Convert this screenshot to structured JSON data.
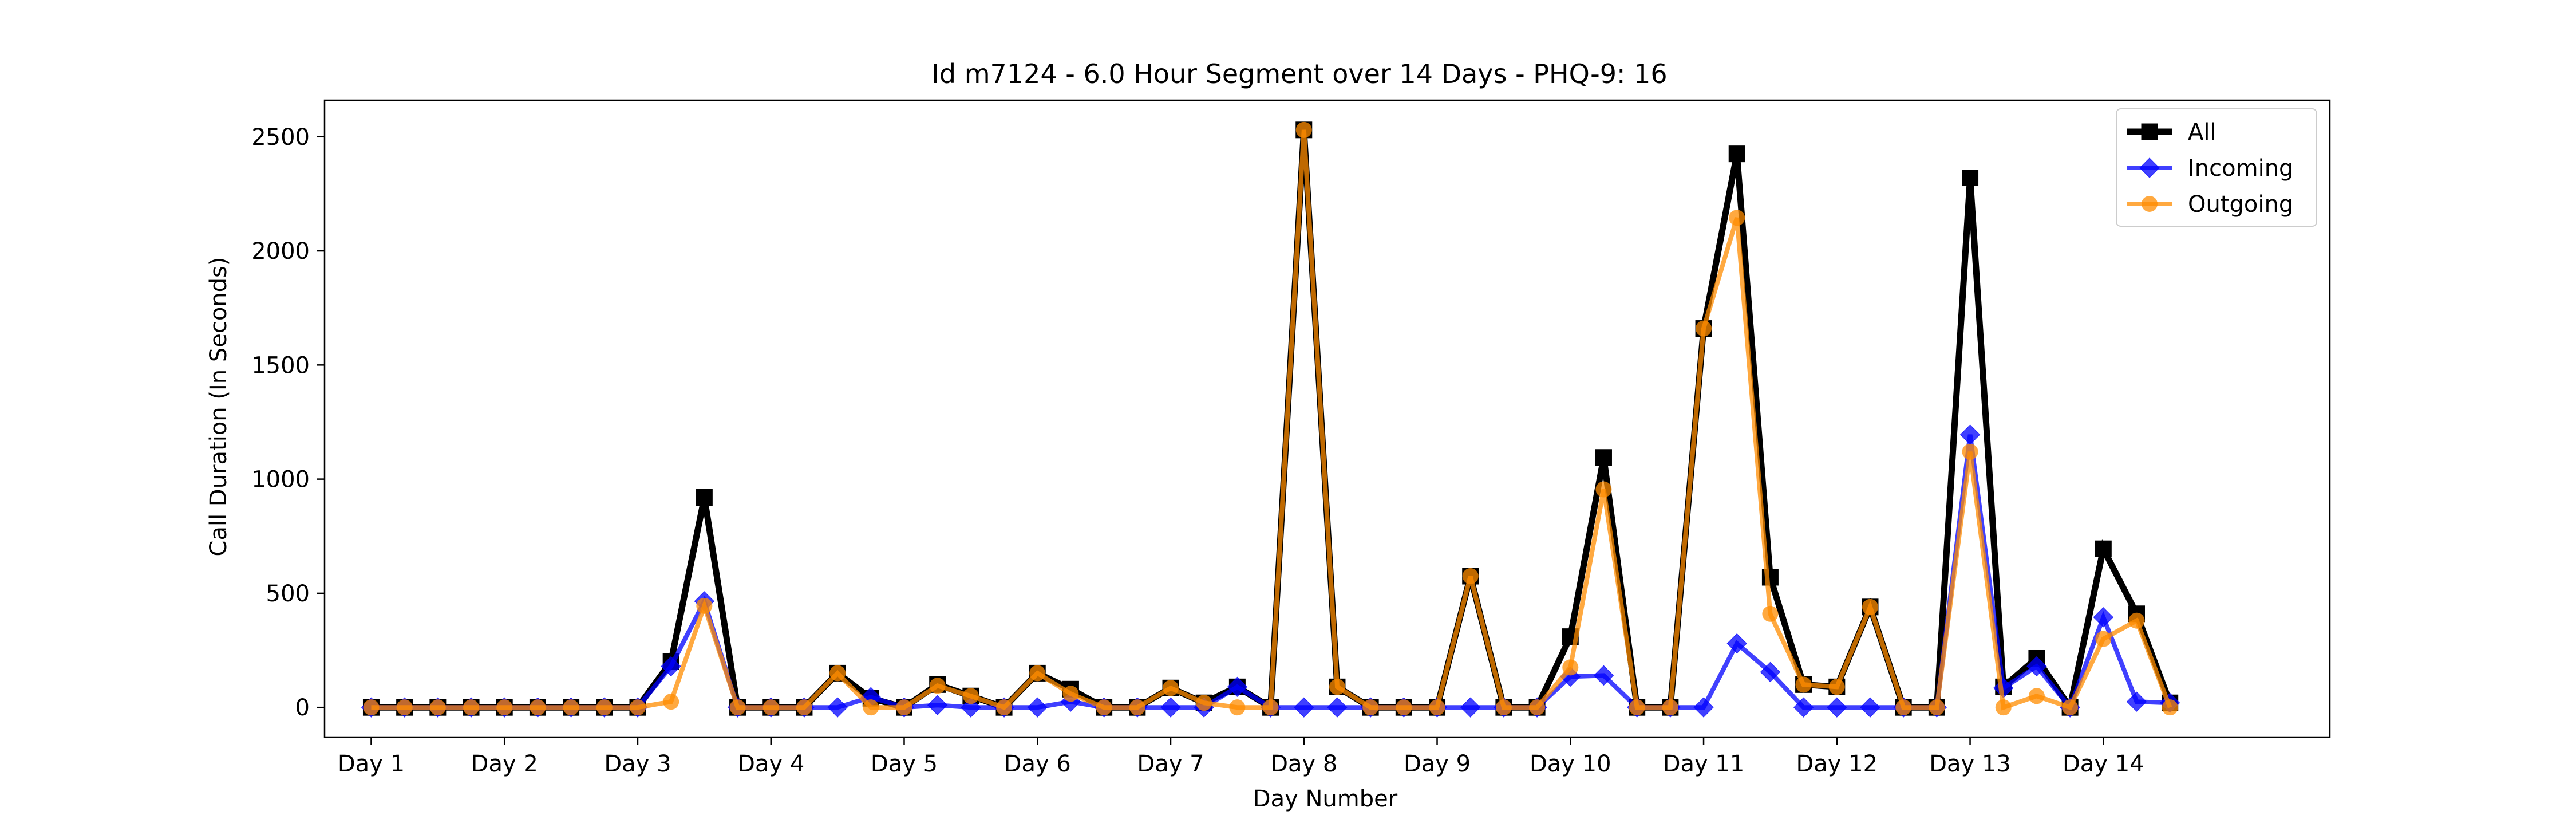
{
  "chart_data": {
    "type": "line",
    "title": "Id m7124 - 6.0 Hour Segment over 14 Days - PHQ-9: 16",
    "xlabel": "Day Number",
    "ylabel": "Call Duration (In Seconds)",
    "ylim": [
      -130,
      2660
    ],
    "xlim": [
      -1.4,
      58.8
    ],
    "x_ticks": [
      {
        "x": 0,
        "label": "Day 1"
      },
      {
        "x": 4,
        "label": "Day 2"
      },
      {
        "x": 8,
        "label": "Day 3"
      },
      {
        "x": 12,
        "label": "Day 4"
      },
      {
        "x": 16,
        "label": "Day 5"
      },
      {
        "x": 20,
        "label": "Day 6"
      },
      {
        "x": 24,
        "label": "Day 7"
      },
      {
        "x": 28,
        "label": "Day 8"
      },
      {
        "x": 32,
        "label": "Day 9"
      },
      {
        "x": 36,
        "label": "Day 10"
      },
      {
        "x": 40,
        "label": "Day 11"
      },
      {
        "x": 44,
        "label": "Day 12"
      },
      {
        "x": 48,
        "label": "Day 13"
      },
      {
        "x": 52,
        "label": "Day 14"
      }
    ],
    "y_ticks": [
      0,
      500,
      1000,
      1500,
      2000,
      2500
    ],
    "grid": false,
    "legend_position": "top-right",
    "series": [
      {
        "name": "All",
        "color": "#000000",
        "marker": "square",
        "values": [
          0,
          0,
          0,
          0,
          0,
          0,
          0,
          0,
          0,
          200,
          920,
          0,
          0,
          0,
          150,
          40,
          0,
          100,
          50,
          0,
          150,
          80,
          0,
          0,
          85,
          20,
          90,
          0,
          2530,
          90,
          0,
          0,
          0,
          575,
          0,
          0,
          310,
          1095,
          0,
          0,
          1660,
          2425,
          570,
          100,
          90,
          440,
          0,
          0,
          2320,
          90,
          215,
          0,
          695,
          410,
          20
        ]
      },
      {
        "name": "Incoming",
        "color": "#0000ff",
        "marker": "diamond",
        "values": [
          0,
          0,
          0,
          0,
          0,
          0,
          0,
          0,
          0,
          180,
          465,
          0,
          0,
          0,
          0,
          45,
          0,
          10,
          0,
          0,
          0,
          25,
          0,
          0,
          0,
          0,
          90,
          0,
          0,
          0,
          0,
          0,
          0,
          0,
          0,
          0,
          135,
          140,
          0,
          0,
          0,
          280,
          155,
          0,
          0,
          0,
          0,
          0,
          1195,
          85,
          180,
          0,
          395,
          25,
          20
        ]
      },
      {
        "name": "Outgoing",
        "color": "#ff8c00",
        "marker": "circle",
        "values": [
          0,
          0,
          0,
          0,
          0,
          0,
          0,
          0,
          0,
          25,
          445,
          0,
          0,
          0,
          150,
          0,
          0,
          95,
          50,
          0,
          150,
          60,
          0,
          0,
          85,
          20,
          0,
          0,
          2530,
          90,
          0,
          0,
          0,
          575,
          0,
          0,
          175,
          955,
          0,
          0,
          1660,
          2145,
          410,
          100,
          90,
          440,
          0,
          0,
          1120,
          0,
          50,
          0,
          300,
          380,
          0
        ]
      }
    ]
  }
}
